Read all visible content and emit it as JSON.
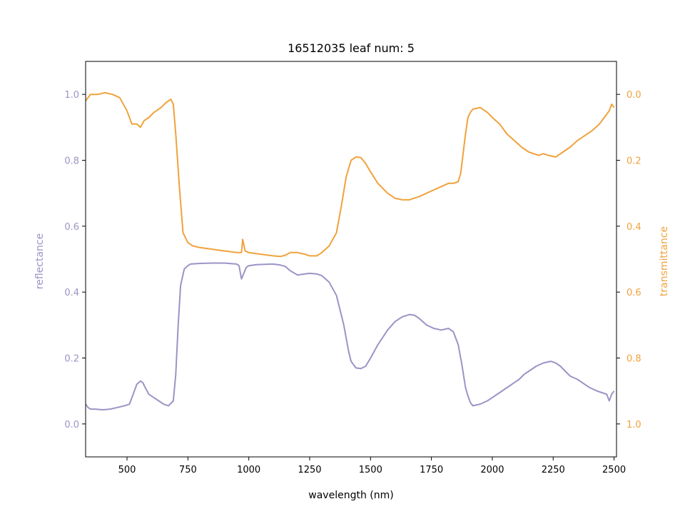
{
  "chart_data": {
    "type": "line",
    "title": "16512035 leaf num: 5",
    "xlabel": "wavelength (nm)",
    "xlim": [
      330,
      2510
    ],
    "x_ticks": [
      500,
      750,
      1000,
      1250,
      1500,
      1750,
      2000,
      2250,
      2500
    ],
    "y_left": {
      "label": "reflectance",
      "lim": [
        -0.1,
        1.1
      ],
      "ticks": [
        0.0,
        0.2,
        0.4,
        0.6,
        0.8,
        1.0
      ],
      "tick_labels": [
        "0.0",
        "0.2",
        "0.4",
        "0.6",
        "0.8",
        "1.0"
      ],
      "color": "#9a94c6"
    },
    "y_right": {
      "label": "transmittance",
      "lim": [
        1.1,
        -0.1
      ],
      "inverted": true,
      "ticks": [
        0.0,
        0.2,
        0.4,
        0.6,
        0.8,
        1.0
      ],
      "tick_labels": [
        "0.0",
        "0.2",
        "0.4",
        "0.6",
        "0.8",
        "1.0"
      ],
      "color": "#f0a23c"
    },
    "grid": false,
    "series": [
      {
        "key": "reflectance",
        "axis": "left",
        "color": "#9a94c6",
        "x": [
          330,
          340,
          350,
          370,
          400,
          430,
          460,
          490,
          510,
          525,
          540,
          555,
          565,
          575,
          590,
          610,
          630,
          650,
          670,
          690,
          700,
          710,
          720,
          735,
          750,
          760,
          800,
          850,
          900,
          950,
          960,
          970,
          990,
          1000,
          1030,
          1100,
          1130,
          1150,
          1170,
          1200,
          1230,
          1250,
          1280,
          1300,
          1330,
          1360,
          1390,
          1410,
          1420,
          1440,
          1460,
          1480,
          1500,
          1530,
          1570,
          1600,
          1630,
          1660,
          1680,
          1700,
          1730,
          1760,
          1790,
          1820,
          1840,
          1860,
          1875,
          1890,
          1900,
          1910,
          1920,
          1950,
          1980,
          2000,
          2030,
          2060,
          2090,
          2110,
          2130,
          2150,
          2180,
          2210,
          2240,
          2260,
          2280,
          2300,
          2320,
          2350,
          2380,
          2400,
          2430,
          2450,
          2470,
          2480,
          2490,
          2500
        ],
        "values": [
          0.06,
          0.05,
          0.045,
          0.045,
          0.043,
          0.045,
          0.05,
          0.055,
          0.06,
          0.09,
          0.12,
          0.13,
          0.125,
          0.11,
          0.09,
          0.08,
          0.07,
          0.06,
          0.055,
          0.07,
          0.15,
          0.3,
          0.42,
          0.47,
          0.48,
          0.485,
          0.487,
          0.488,
          0.488,
          0.485,
          0.48,
          0.44,
          0.475,
          0.48,
          0.483,
          0.485,
          0.482,
          0.478,
          0.465,
          0.452,
          0.455,
          0.457,
          0.455,
          0.45,
          0.43,
          0.39,
          0.3,
          0.22,
          0.19,
          0.17,
          0.168,
          0.175,
          0.2,
          0.24,
          0.285,
          0.31,
          0.325,
          0.332,
          0.33,
          0.32,
          0.3,
          0.29,
          0.285,
          0.29,
          0.28,
          0.24,
          0.18,
          0.11,
          0.085,
          0.065,
          0.055,
          0.06,
          0.07,
          0.08,
          0.095,
          0.11,
          0.125,
          0.135,
          0.15,
          0.16,
          0.175,
          0.185,
          0.19,
          0.185,
          0.175,
          0.16,
          0.145,
          0.135,
          0.12,
          0.11,
          0.1,
          0.095,
          0.09,
          0.07,
          0.09,
          0.1
        ]
      },
      {
        "key": "transmittance",
        "axis": "right",
        "color": "#f0a23c",
        "x": [
          330,
          350,
          380,
          410,
          440,
          470,
          500,
          520,
          540,
          555,
          570,
          590,
          610,
          640,
          660,
          680,
          690,
          700,
          715,
          730,
          750,
          770,
          800,
          850,
          900,
          950,
          970,
          975,
          985,
          1000,
          1050,
          1100,
          1130,
          1150,
          1170,
          1200,
          1230,
          1250,
          1280,
          1300,
          1330,
          1360,
          1380,
          1400,
          1420,
          1440,
          1460,
          1480,
          1500,
          1530,
          1570,
          1600,
          1630,
          1660,
          1680,
          1700,
          1730,
          1760,
          1790,
          1820,
          1840,
          1860,
          1870,
          1880,
          1890,
          1900,
          1910,
          1920,
          1950,
          1980,
          2000,
          2030,
          2060,
          2090,
          2120,
          2150,
          2170,
          2190,
          2210,
          2230,
          2260,
          2290,
          2320,
          2350,
          2380,
          2410,
          2440,
          2460,
          2480,
          2490,
          2500
        ],
        "values": [
          0.02,
          0.0,
          0.0,
          -0.005,
          0.0,
          0.01,
          0.05,
          0.09,
          0.09,
          0.1,
          0.08,
          0.07,
          0.055,
          0.04,
          0.025,
          0.015,
          0.03,
          0.12,
          0.28,
          0.42,
          0.45,
          0.46,
          0.465,
          0.47,
          0.475,
          0.48,
          0.48,
          0.44,
          0.475,
          0.48,
          0.485,
          0.49,
          0.492,
          0.488,
          0.48,
          0.48,
          0.485,
          0.49,
          0.49,
          0.48,
          0.46,
          0.42,
          0.34,
          0.25,
          0.2,
          0.19,
          0.192,
          0.21,
          0.235,
          0.27,
          0.3,
          0.315,
          0.32,
          0.32,
          0.315,
          0.31,
          0.3,
          0.29,
          0.28,
          0.27,
          0.27,
          0.265,
          0.24,
          0.18,
          0.12,
          0.07,
          0.055,
          0.045,
          0.04,
          0.055,
          0.07,
          0.09,
          0.12,
          0.14,
          0.16,
          0.175,
          0.18,
          0.185,
          0.18,
          0.185,
          0.19,
          0.175,
          0.16,
          0.14,
          0.125,
          0.11,
          0.09,
          0.07,
          0.05,
          0.03,
          0.04
        ]
      }
    ]
  }
}
